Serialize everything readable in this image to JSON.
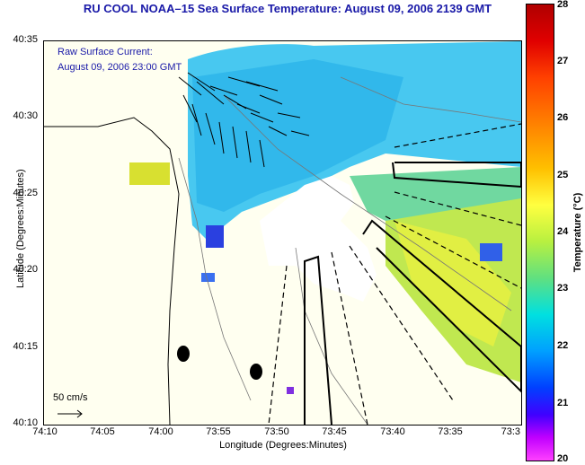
{
  "title": "RU COOL  NOAA–15  Sea Surface Temperature:  August 09, 2006 2139 GMT",
  "current_label": {
    "line1": "Raw Surface Current:",
    "line2": "August 09, 2006 23:00 GMT"
  },
  "scale_label": "50 cm/s",
  "axes": {
    "ylabel": "Latitude (Degrees:Minutes)",
    "xlabel": "Longitude (Degrees:Minutes)",
    "yticks": [
      "40:35",
      "40:30",
      "40:25",
      "40:20",
      "40:15",
      "40:10"
    ],
    "xticks": [
      "74:10",
      "74:05",
      "74:00",
      "73:55",
      "73:50",
      "73:45",
      "73:40",
      "73:35",
      "73:3"
    ]
  },
  "colorbar": {
    "label": "Temperature (°C)",
    "ticks": [
      "28",
      "27",
      "26",
      "25",
      "24",
      "23",
      "22",
      "21",
      "20"
    ],
    "range": [
      20,
      28
    ]
  },
  "colors": {
    "title_text": "#1a1aa8",
    "land": "#fffff0",
    "sst_cool": "#40c8f0",
    "sst_warm": "#d0f040"
  }
}
